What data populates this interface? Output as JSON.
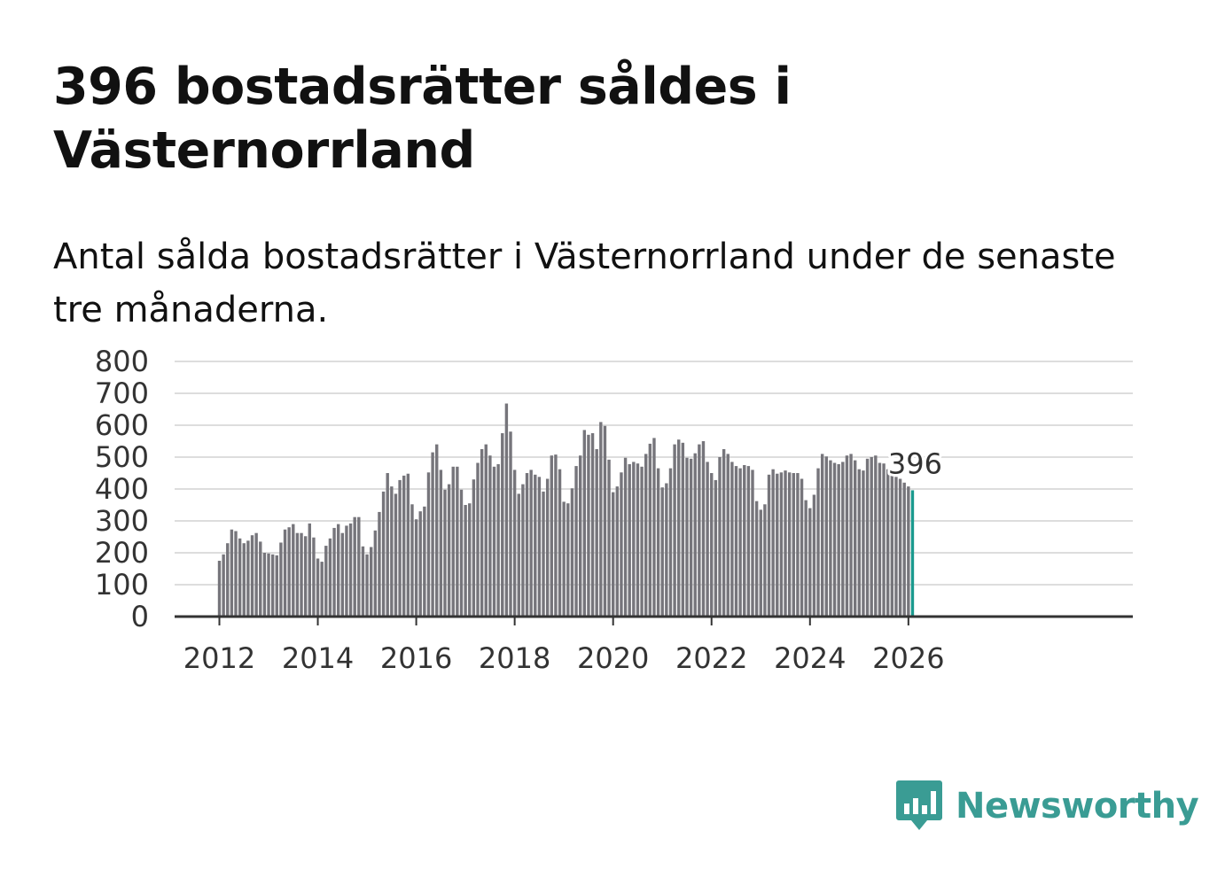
{
  "headline": "396 bostadsrätter såldes i Västernorrland",
  "subtitle": "Antal sålda bostadsrätter i Västernorrland under de senaste tre månaderna.",
  "brand": {
    "name": "Newsworthy",
    "color": "#3a9c94"
  },
  "colors": {
    "bar": "#76757b",
    "highlight": "#1a9a8e",
    "grid": "#dddddd",
    "axis": "#333333"
  },
  "chart_data": {
    "type": "bar",
    "title": "396 bostadsrätter såldes i Västernorrland",
    "xlabel": "",
    "ylabel": "",
    "ylim": [
      0,
      800
    ],
    "yticks": [
      "0",
      "100",
      "200",
      "300",
      "400",
      "500",
      "600",
      "700",
      "800"
    ],
    "xticks": [
      "2012",
      "2014",
      "2016",
      "2018",
      "2020",
      "2022",
      "2024",
      "2026"
    ],
    "x_start": "2012-01",
    "x_end": "2026-02",
    "grid": true,
    "annotation": {
      "label": "396",
      "index": 169
    },
    "values": [
      175,
      195,
      230,
      273,
      268,
      245,
      230,
      238,
      255,
      262,
      235,
      200,
      198,
      195,
      192,
      232,
      273,
      280,
      290,
      262,
      262,
      252,
      292,
      248,
      182,
      172,
      222,
      245,
      278,
      290,
      262,
      285,
      292,
      312,
      312,
      220,
      195,
      218,
      270,
      328,
      392,
      450,
      408,
      385,
      428,
      442,
      448,
      352,
      305,
      330,
      345,
      452,
      515,
      540,
      460,
      398,
      415,
      470,
      470,
      398,
      350,
      355,
      430,
      482,
      525,
      540,
      505,
      470,
      478,
      575,
      668,
      580,
      460,
      385,
      415,
      450,
      460,
      445,
      438,
      392,
      432,
      505,
      508,
      462,
      360,
      355,
      402,
      472,
      505,
      585,
      570,
      575,
      525,
      610,
      598,
      492,
      390,
      408,
      452,
      498,
      478,
      485,
      480,
      470,
      510,
      542,
      560,
      465,
      405,
      418,
      465,
      540,
      555,
      545,
      498,
      495,
      512,
      540,
      550,
      485,
      450,
      428,
      500,
      525,
      510,
      485,
      472,
      465,
      475,
      472,
      460,
      362,
      335,
      352,
      445,
      462,
      448,
      452,
      458,
      452,
      450,
      450,
      432,
      365,
      340,
      382,
      465,
      510,
      502,
      490,
      482,
      478,
      485,
      505,
      510,
      490,
      462,
      458,
      495,
      500,
      505,
      482,
      480,
      462,
      442,
      438,
      432,
      420,
      408,
      396
    ]
  }
}
